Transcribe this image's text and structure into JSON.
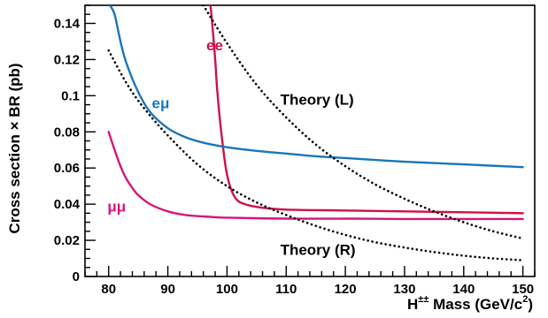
{
  "chart_data": {
    "type": "line",
    "xlabel": {
      "prefix": "H",
      "sup": "±±",
      "suffix": " Mass (GeV/c",
      "sup2": "2",
      "close": ")"
    },
    "ylabel": "Cross section × BR (pb)",
    "xlim": [
      76,
      152
    ],
    "ylim": [
      0,
      0.15
    ],
    "xticks": [
      80,
      90,
      100,
      110,
      120,
      130,
      140,
      150
    ],
    "xtick_labels": [
      "80",
      "90",
      "100",
      "110",
      "120",
      "130",
      "140",
      "150"
    ],
    "yticks": [
      0,
      0.02,
      0.04,
      0.06,
      0.08,
      0.1,
      0.12,
      0.14
    ],
    "ytick_labels": [
      "0",
      "0.02",
      "0.04",
      "0.06",
      "0.08",
      "0.1",
      "0.12",
      "0.14"
    ],
    "grid": false,
    "series": [
      {
        "name": "ee",
        "color": "#d0104a",
        "style": "solid",
        "label_pos": [
          96.5,
          0.125
        ],
        "x": [
          97.2,
          97.5,
          98.0,
          98.3,
          98.7,
          99.2,
          99.8,
          100.5,
          101.5,
          103,
          106,
          110,
          120,
          130,
          140,
          150
        ],
        "y": [
          0.15,
          0.14,
          0.12,
          0.105,
          0.09,
          0.075,
          0.06,
          0.05,
          0.043,
          0.04,
          0.038,
          0.037,
          0.0365,
          0.036,
          0.0355,
          0.035
        ]
      },
      {
        "name": "eμ",
        "color": "#1a75b8",
        "style": "solid",
        "label_pos": [
          87.3,
          0.093
        ],
        "x": [
          80.2,
          81,
          82,
          83,
          85,
          87,
          90,
          93,
          96,
          100,
          105,
          110,
          115,
          120,
          130,
          140,
          150
        ],
        "y": [
          0.15,
          0.145,
          0.13,
          0.118,
          0.102,
          0.091,
          0.082,
          0.077,
          0.074,
          0.0715,
          0.0695,
          0.068,
          0.0665,
          0.0655,
          0.0635,
          0.062,
          0.0605
        ]
      },
      {
        "name": "μμ",
        "color": "#d4167a",
        "style": "solid",
        "label_pos": [
          79.8,
          0.036
        ],
        "x": [
          80,
          81,
          82,
          83,
          84,
          85,
          87,
          90,
          93,
          97,
          100,
          110,
          120,
          130,
          140,
          150
        ],
        "y": [
          0.08,
          0.07,
          0.061,
          0.054,
          0.049,
          0.045,
          0.04,
          0.036,
          0.034,
          0.033,
          0.0325,
          0.032,
          0.032,
          0.0318,
          0.0318,
          0.0318
        ]
      },
      {
        "name": "Theory (L)",
        "color": "#000000",
        "style": "dotted",
        "label_pos": [
          109,
          0.095
        ],
        "x": [
          96,
          100,
          105,
          110,
          115,
          120,
          125,
          130,
          135,
          140,
          145,
          150
        ],
        "y": [
          0.15,
          0.129,
          0.106,
          0.088,
          0.073,
          0.061,
          0.051,
          0.043,
          0.036,
          0.03,
          0.025,
          0.021
        ]
      },
      {
        "name": "Theory (R)",
        "color": "#000000",
        "style": "dotted",
        "label_pos": [
          109,
          0.012
        ],
        "x": [
          80,
          83,
          86,
          90,
          95,
          100,
          105,
          110,
          115,
          120,
          125,
          130,
          135,
          140,
          145,
          150
        ],
        "y": [
          0.125,
          0.107,
          0.093,
          0.078,
          0.062,
          0.05,
          0.041,
          0.034,
          0.028,
          0.023,
          0.019,
          0.016,
          0.0135,
          0.0115,
          0.01,
          0.009
        ]
      }
    ]
  }
}
